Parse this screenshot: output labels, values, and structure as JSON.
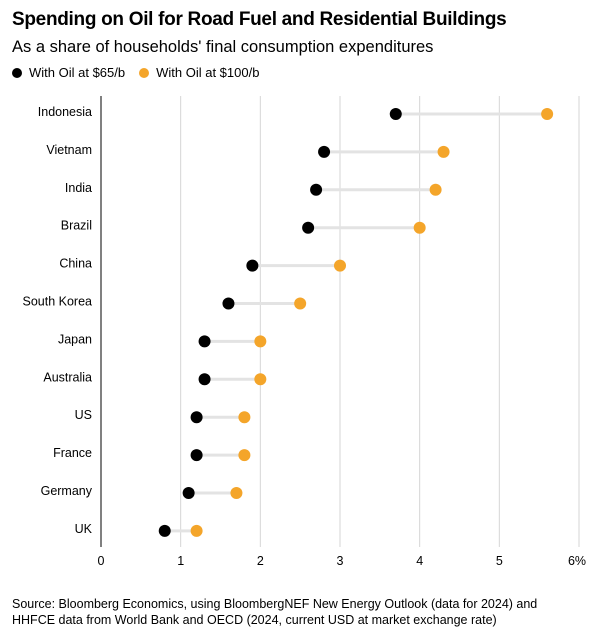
{
  "chart_data": {
    "type": "dot-plot",
    "title": "Spending on Oil for Road Fuel and Residential Buildings",
    "subtitle": "As a share of households' final consumption expenditures",
    "legend": [
      {
        "name": "With Oil at $65/b",
        "color": "#000000"
      },
      {
        "name": "With Oil at $100/b",
        "color": "#f4a52a"
      }
    ],
    "categories": [
      "Indonesia",
      "Vietnam",
      "India",
      "Brazil",
      "China",
      "South Korea",
      "Japan",
      "Australia",
      "US",
      "France",
      "Germany",
      "UK"
    ],
    "series": [
      {
        "name": "With Oil at $65/b",
        "values": [
          3.7,
          2.8,
          2.7,
          2.6,
          1.9,
          1.6,
          1.3,
          1.3,
          1.2,
          1.2,
          1.1,
          0.8
        ]
      },
      {
        "name": "With Oil at $100/b",
        "values": [
          5.6,
          4.3,
          4.2,
          4.0,
          3.0,
          2.5,
          2.0,
          2.0,
          1.8,
          1.8,
          1.7,
          1.2
        ]
      }
    ],
    "xlim": [
      0,
      6
    ],
    "xticks": [
      "0",
      "1",
      "2",
      "3",
      "4",
      "5",
      "6%"
    ],
    "grid": true,
    "connector_color": "#e3e3e3",
    "grid_color": "#d6d6d6"
  },
  "source_lines": [
    "Source: Bloomberg Economics, using BloombergNEF New Energy Outlook (data for 2024) and",
    "HHFCE data from World Bank and OECD (2024, current USD at market exchange rate)"
  ]
}
